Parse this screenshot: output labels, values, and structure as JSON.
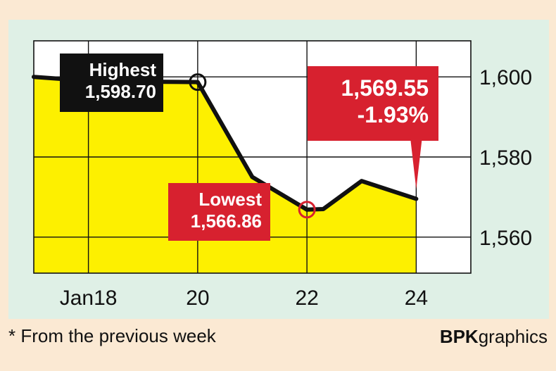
{
  "chart_data": {
    "type": "line",
    "x": [
      17,
      18,
      19,
      20,
      21,
      22,
      22.3,
      23,
      24
    ],
    "y": [
      1600.0,
      1599.0,
      1598.8,
      1598.7,
      1575.0,
      1566.86,
      1567.0,
      1574.0,
      1569.55
    ],
    "xtick_labels": [
      {
        "x": 18,
        "label": "Jan18"
      },
      {
        "x": 20,
        "label": "20"
      },
      {
        "x": 22,
        "label": "22"
      },
      {
        "x": 24,
        "label": "24"
      }
    ],
    "yticks": [
      1600,
      1580,
      1560
    ],
    "ytick_labels": [
      "1,600",
      "1,580",
      "1,560"
    ],
    "xlim": [
      17,
      25
    ],
    "ylim": [
      1551,
      1609
    ],
    "fill": "below-line",
    "grid": true,
    "annotations": {
      "highest": {
        "title": "Highest",
        "value": "1,598.70",
        "x": 20,
        "y": 1598.7
      },
      "lowest": {
        "title": "Lowest",
        "value": "1,566.86",
        "x": 22,
        "y": 1566.86
      },
      "latest": {
        "value": "1,569.55",
        "change": "-1.93%",
        "x": 24,
        "y": 1569.55
      }
    }
  },
  "footnote": "* From the previous week",
  "credit": {
    "bold": "BPK",
    "rest": "graphics"
  },
  "colors": {
    "fill": "#fdf000",
    "line": "#111111",
    "red": "#d7212f",
    "panel": "#dff0e6",
    "background": "#fbe9d3",
    "plot": "#ffffff"
  }
}
